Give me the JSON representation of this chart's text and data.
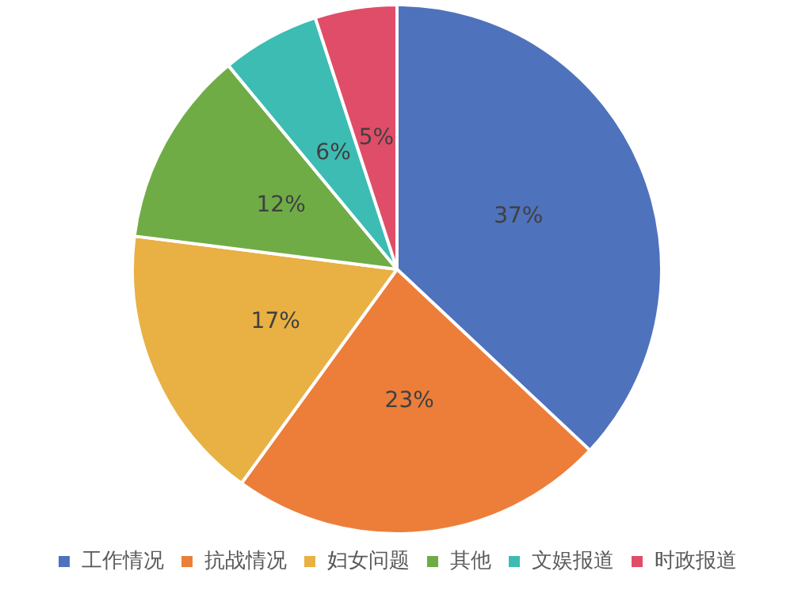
{
  "chart_data": {
    "type": "pie",
    "categories": [
      "工作情况",
      "抗战情况",
      "妇女问题",
      "其他",
      "文娱报道",
      "时政报道"
    ],
    "values": [
      37,
      23,
      17,
      12,
      6,
      5
    ],
    "colors": [
      "#4f72bd",
      "#ec7e3a",
      "#e9b043",
      "#6fac46",
      "#3dbcb3",
      "#e04d68"
    ],
    "value_labels": [
      "37%",
      "23%",
      "17%",
      "12%",
      "6%",
      "5%"
    ],
    "legend": "bottom"
  }
}
